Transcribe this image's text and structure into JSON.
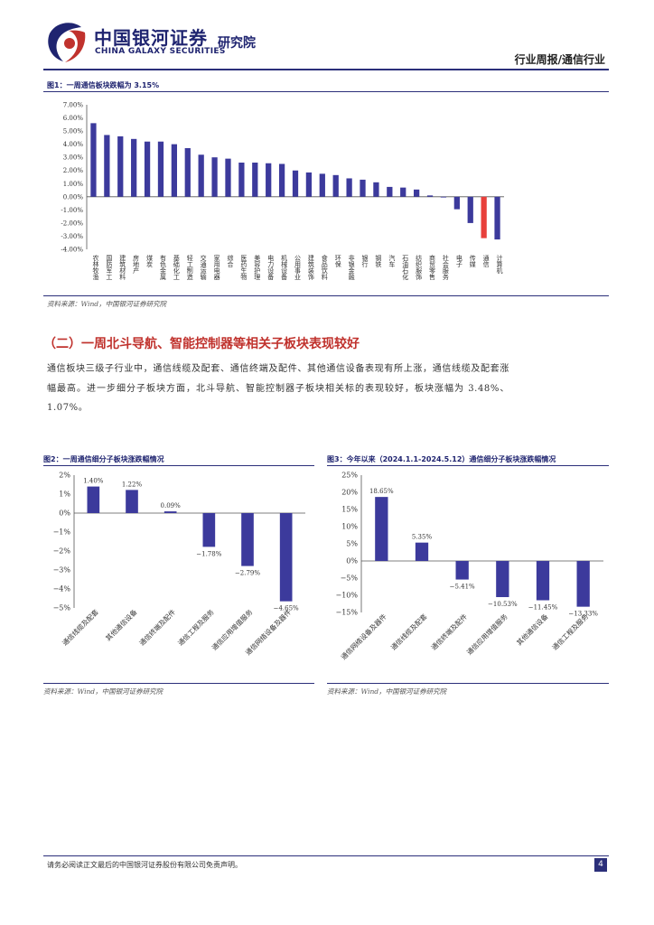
{
  "header": {
    "logo_cn": "中国银河证券",
    "logo_en": "CHINA GALAXY SECURITIES",
    "institute": "研究院",
    "report_type": "行业周报/通信行业"
  },
  "section": {
    "title": "（二）一周北斗导航、智能控制器等相关子板块表现较好",
    "body": "通信板块三级子行业中，通信线缆及配套、通信终端及配件、其他通信设备表现有所上涨，通信线缆及配套涨幅最高。进一步细分子板块方面，北斗导航、智能控制器子板块相关标的表现较好，板块涨幅为 3.48%、1.07%。"
  },
  "footer": {
    "disclaimer": "请务必阅读正文最后的中国银河证券股份有限公司免责声明。",
    "page_number": "4"
  },
  "colors": {
    "bar": "#3c3a9c",
    "highlight": "#e8403b",
    "brand": "#1f2470",
    "section": "#c0322d"
  },
  "chart_data": [
    {
      "type": "bar",
      "title": "图1：一周通信板块跌幅为 3.15%",
      "source": "资料来源：Wind，中国银河证券研究院",
      "categories": [
        "农林牧渔",
        "国防军工",
        "建筑材料",
        "房地产",
        "煤炭",
        "有色金属",
        "基础化工",
        "轻工制造",
        "交通运输",
        "家用电器",
        "综合",
        "医药生物",
        "美容护理",
        "电力设备",
        "机械设备",
        "公用事业",
        "建筑装饰",
        "食品饮料",
        "环保",
        "非银金融",
        "银行",
        "钢铁",
        "汽车",
        "石油石化",
        "纺织服饰",
        "商贸零售",
        "社会服务",
        "电子",
        "传媒",
        "通信",
        "计算机"
      ],
      "values": [
        5.6,
        4.7,
        4.6,
        4.4,
        4.2,
        4.2,
        4.0,
        3.7,
        3.2,
        3.0,
        2.9,
        2.6,
        2.6,
        2.55,
        2.5,
        2.0,
        1.85,
        1.75,
        1.65,
        1.4,
        1.3,
        1.1,
        0.75,
        0.7,
        0.55,
        0.1,
        -0.05,
        -0.95,
        -2.0,
        -3.15,
        -3.25
      ],
      "highlight": "通信",
      "yticks": [
        "7.00%",
        "6.00%",
        "5.00%",
        "4.00%",
        "3.00%",
        "2.00%",
        "1.00%",
        "0.00%",
        "-1.00%",
        "-2.00%",
        "-3.00%",
        "-4.00%"
      ],
      "ylim": [
        -4,
        7
      ]
    },
    {
      "type": "bar",
      "title": "图2：一周通信细分子板块涨跌幅情况",
      "source": "资料来源：Wind，中国银河证券研究院",
      "categories": [
        "通信线缆及配套",
        "其他通信设备",
        "通信终端及配件",
        "通信工程及服务",
        "通信应用增值服务",
        "通信网络设备及器件"
      ],
      "values": [
        1.4,
        1.22,
        0.09,
        -1.78,
        -2.79,
        -4.65
      ],
      "labels": [
        "1.40%",
        "1.22%",
        "0.09%",
        "−1.78%",
        "−2.79%",
        "−4.65%"
      ],
      "yticks": [
        "2%",
        "1%",
        "0%",
        "−1%",
        "−2%",
        "−3%",
        "−4%",
        "−5%"
      ],
      "ylim": [
        -5,
        2
      ]
    },
    {
      "type": "bar",
      "title": "图3：今年以来（2024.1.1-2024.5.12）通信细分子板块涨跌幅情况",
      "source": "资料来源：Wind，中国银河证券研究院",
      "categories": [
        "通信网络设备及器件",
        "通信线缆及配套",
        "通信终端及配件",
        "通信应用增值服务",
        "其他通信设备",
        "通信工程及服务"
      ],
      "values": [
        18.65,
        5.35,
        -5.41,
        -10.53,
        -11.45,
        -13.33
      ],
      "labels": [
        "18.65%",
        "5.35%",
        "−5.41%",
        "−10.53%",
        "−11.45%",
        "−13.33%"
      ],
      "yticks": [
        "25%",
        "20%",
        "15%",
        "10%",
        "5%",
        "0%",
        "−5%",
        "−10%",
        "−15%"
      ],
      "ylim": [
        -15,
        25
      ]
    }
  ]
}
